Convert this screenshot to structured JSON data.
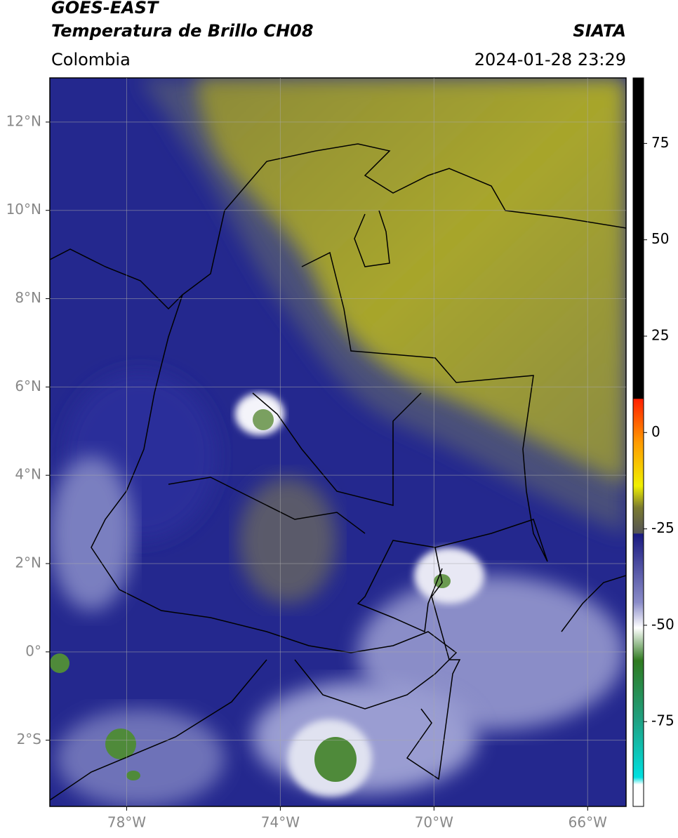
{
  "header": {
    "line1": "GOES-EAST",
    "line2": "Temperatura de Brillo CH08",
    "source": "SIATA",
    "region": "Colombia",
    "datetime": "2024-01-28 23:29"
  },
  "map": {
    "xlim": [
      -80,
      -65
    ],
    "ylim": [
      -3.5,
      13
    ],
    "xticks": [
      {
        "value": -78,
        "label": "78°W"
      },
      {
        "value": -74,
        "label": "74°W"
      },
      {
        "value": -70,
        "label": "70°W"
      },
      {
        "value": -66,
        "label": "66°W"
      }
    ],
    "yticks": [
      {
        "value": 12,
        "label": "12°N"
      },
      {
        "value": 10,
        "label": "10°N"
      },
      {
        "value": 8,
        "label": "8°N"
      },
      {
        "value": 6,
        "label": "6°N"
      },
      {
        "value": 4,
        "label": "4°N"
      },
      {
        "value": 2,
        "label": "2°N"
      },
      {
        "value": 0,
        "label": "0°"
      },
      {
        "value": -2,
        "label": "2°S"
      }
    ],
    "grid": true
  },
  "colorbar": {
    "lim": [
      -97,
      92
    ],
    "ticks": [
      75,
      50,
      25,
      0,
      -25,
      -50,
      -75
    ]
  }
}
